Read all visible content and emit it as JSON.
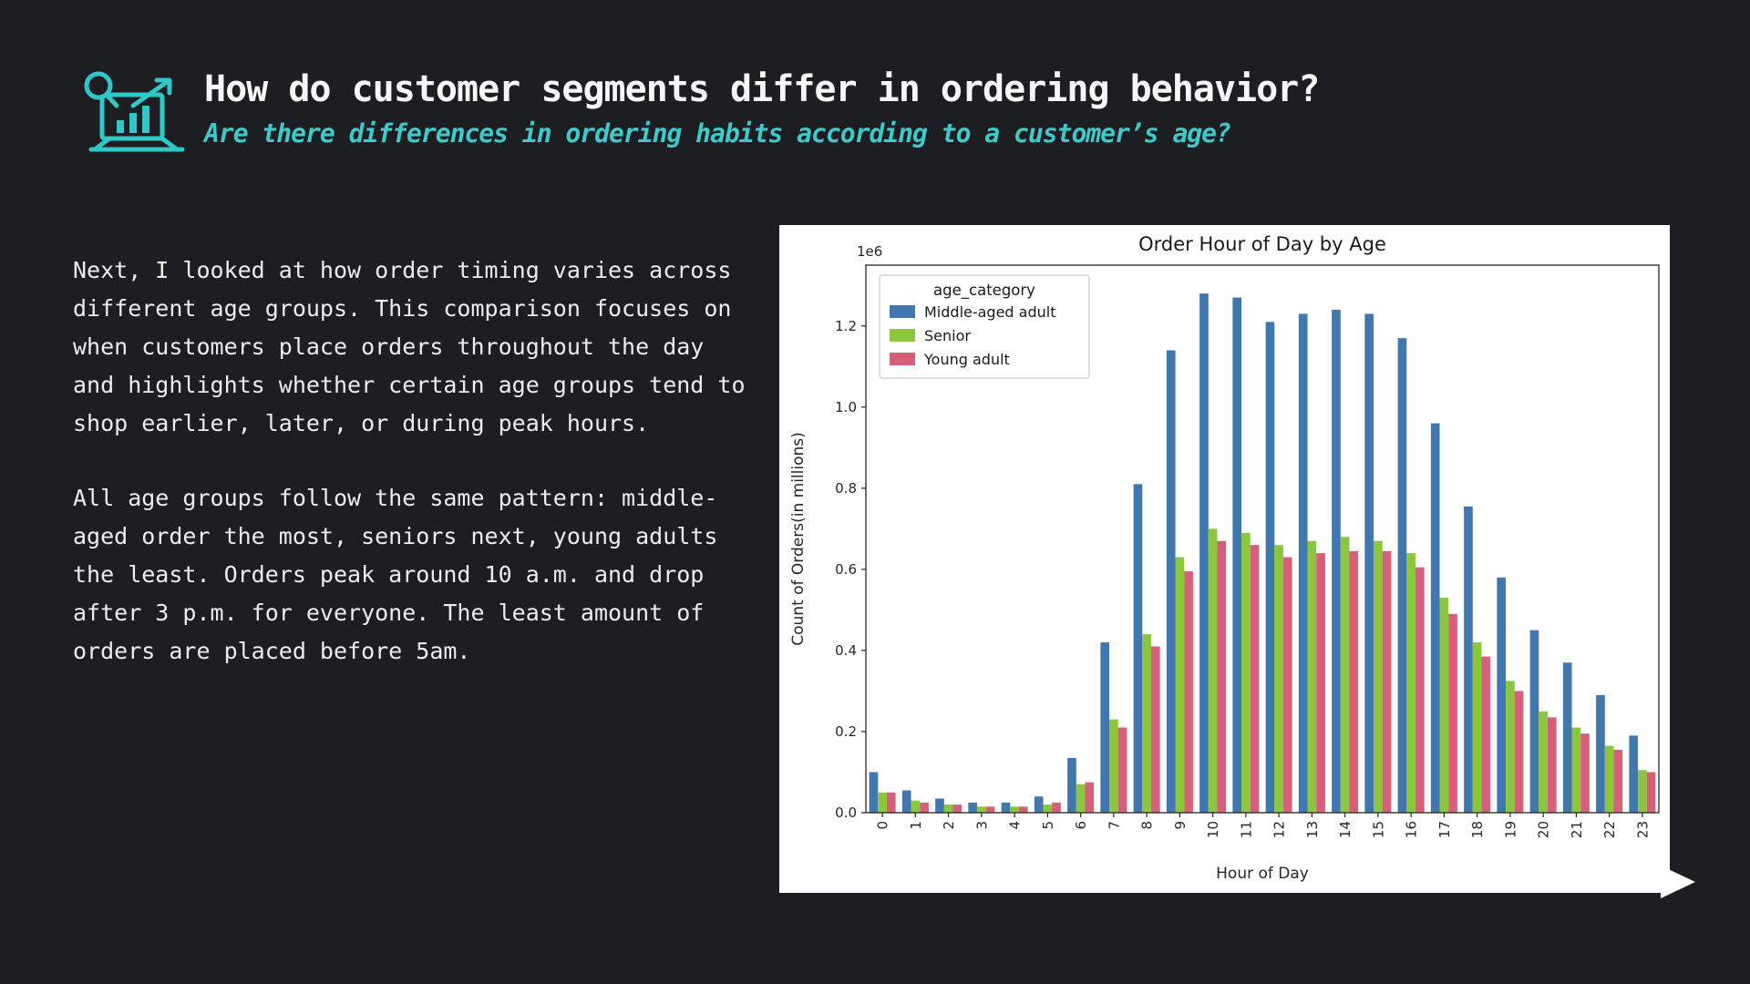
{
  "page": {
    "title": "How do customer segments differ in ordering behavior?",
    "subtitle": "Are there differences in ordering habits according to a customer’s age?",
    "accent_color": "#3ecaca",
    "background_color": "#1d1e21"
  },
  "icons": {
    "header_icon": "chart-magnifier-growth-icon",
    "next_arrow": "right-arrow-icon"
  },
  "body": {
    "paragraph1": "Next, I looked at how order timing varies across different age groups. This comparison focuses on when customers place orders throughout the day and highlights whether certain age groups tend to shop earlier, later, or during peak hours.",
    "paragraph2": "All age groups follow the same pattern: middle-aged order the most, seniors next, young adults the least. Orders peak around 10 a.m. and drop after 3 p.m. for everyone. The least amount of orders are placed before 5am."
  },
  "chart_data": {
    "type": "bar",
    "title": "Order Hour of Day by Age",
    "xlabel": "Hour of Day",
    "ylabel": "Count of Orders(in millions)",
    "offset_text": "1e6",
    "legend_title": "age_category",
    "legend_position": "upper left",
    "grid": false,
    "background": "#ffffff",
    "ylim": [
      0,
      1.35
    ],
    "yticks": [
      0.0,
      0.2,
      0.4,
      0.6,
      0.8,
      1.0,
      1.2
    ],
    "categories": [
      0,
      1,
      2,
      3,
      4,
      5,
      6,
      7,
      8,
      9,
      10,
      11,
      12,
      13,
      14,
      15,
      16,
      17,
      18,
      19,
      20,
      21,
      22,
      23
    ],
    "series": [
      {
        "name": "Middle-aged adult",
        "color": "#3f77ae",
        "values": [
          0.1,
          0.055,
          0.035,
          0.025,
          0.025,
          0.04,
          0.135,
          0.42,
          0.81,
          1.14,
          1.28,
          1.27,
          1.21,
          1.23,
          1.24,
          1.23,
          1.17,
          0.96,
          0.755,
          0.58,
          0.45,
          0.37,
          0.29,
          0.19
        ]
      },
      {
        "name": "Senior",
        "color": "#8cc63e",
        "values": [
          0.05,
          0.03,
          0.02,
          0.015,
          0.015,
          0.02,
          0.07,
          0.23,
          0.44,
          0.63,
          0.7,
          0.69,
          0.66,
          0.67,
          0.68,
          0.67,
          0.64,
          0.53,
          0.42,
          0.325,
          0.25,
          0.21,
          0.165,
          0.105
        ]
      },
      {
        "name": "Young adult",
        "color": "#d65f7a",
        "values": [
          0.05,
          0.025,
          0.02,
          0.015,
          0.015,
          0.025,
          0.075,
          0.21,
          0.41,
          0.595,
          0.67,
          0.66,
          0.63,
          0.64,
          0.645,
          0.645,
          0.605,
          0.49,
          0.385,
          0.3,
          0.235,
          0.195,
          0.155,
          0.1
        ]
      }
    ]
  }
}
